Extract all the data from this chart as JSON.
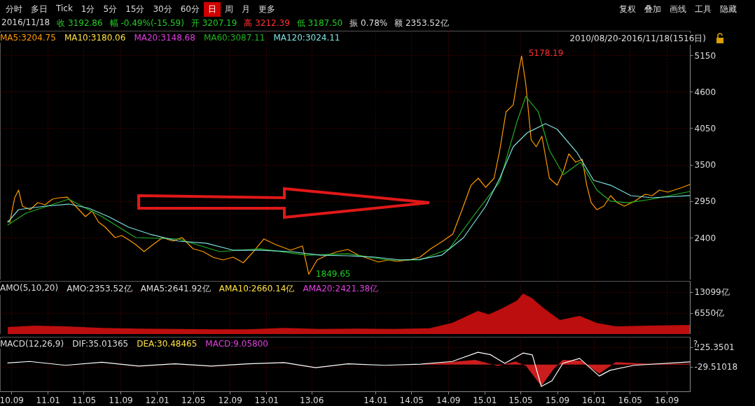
{
  "chart_data": [
    {
      "type": "line",
      "xlim": [
        "2010-07-25",
        "2016-11-18"
      ],
      "ylim": [
        1770,
        5519
      ],
      "yticks": [
        2400,
        2950,
        3500,
        4050,
        4600,
        5150
      ],
      "xticks": [
        "2010-09-01",
        "2011-01-01",
        "2011-05-01",
        "2011-09-01",
        "2012-01-01",
        "2012-05-01",
        "2012-09-01",
        "2013-01-01",
        "2013-06-01",
        "2014-01-01",
        "2014-05-01",
        "2014-09-01",
        "2015-01-01",
        "2015-05-01",
        "2015-09-01",
        "2016-01-01",
        "2016-05-01",
        "2016-09-01"
      ],
      "tick_labels": "y",
      "grid": true,
      "series": [
        {
          "color": "#ff9a00",
          "x": [
            "2010-08-20",
            "2010-08-27",
            "2010-09-12",
            "2010-09-25",
            "2010-10-08",
            "2010-11-03",
            "2010-11-28",
            "2010-12-23",
            "2011-01-16",
            "2011-02-08",
            "2011-03-07",
            "2011-04-04",
            "2011-05-07",
            "2011-05-29",
            "2011-06-20",
            "2011-07-12",
            "2011-08-14",
            "2011-09-05",
            "2011-09-28",
            "2011-10-22",
            "2011-11-19",
            "2011-12-19",
            "2012-01-20",
            "2012-02-23",
            "2012-03-25",
            "2012-05-01",
            "2012-06-04",
            "2012-07-06",
            "2012-08-09",
            "2012-09-12",
            "2012-10-16",
            "2012-11-15",
            "2012-12-24",
            "2013-02-01",
            "2013-03-23",
            "2013-05-02",
            "2013-05-23",
            "2013-06-20",
            "2013-07-24",
            "2013-08-28",
            "2013-10-01",
            "2013-11-05",
            "2013-12-09",
            "2014-01-11",
            "2014-02-12",
            "2014-03-13",
            "2014-04-24",
            "2014-05-30",
            "2014-07-05",
            "2014-08-11",
            "2014-09-17",
            "2014-10-18",
            "2014-11-17",
            "2014-12-11",
            "2015-01-05",
            "2015-02-02",
            "2015-02-21",
            "2015-03-14",
            "2015-04-07",
            "2015-04-26",
            "2015-05-05",
            "2015-05-19",
            "2015-06-06",
            "2015-06-23",
            "2015-07-12",
            "2015-08-06",
            "2015-09-01",
            "2015-09-22",
            "2015-10-10",
            "2015-11-02",
            "2015-11-24",
            "2015-12-09",
            "2015-12-24",
            "2016-01-12",
            "2016-02-04",
            "2016-02-27",
            "2016-03-20",
            "2016-04-13",
            "2016-05-17",
            "2016-06-21",
            "2016-07-15",
            "2016-08-08",
            "2016-09-05",
            "2016-10-25",
            "2016-11-18"
          ],
          "values": [
            2654,
            2633,
            3002,
            3118,
            2876,
            2823,
            2928,
            2897,
            2981,
            3002,
            3012,
            2876,
            2718,
            2802,
            2633,
            2560,
            2402,
            2433,
            2370,
            2296,
            2191,
            2296,
            2402,
            2349,
            2402,
            2233,
            2191,
            2107,
            2065,
            2107,
            2023,
            2170,
            2381,
            2296,
            2212,
            2275,
            1849.65,
            2065,
            2138,
            2191,
            2223,
            2138,
            2086,
            2033,
            2065,
            2044,
            2065,
            2107,
            2233,
            2339,
            2454,
            2823,
            3191,
            3297,
            3160,
            3297,
            3718,
            4297,
            4402,
            4929,
            5140,
            4718,
            3876,
            3771,
            3929,
            3297,
            3191,
            3402,
            3665,
            3539,
            3581,
            3191,
            2928,
            2823,
            2876,
            3034,
            2928,
            2876,
            2950,
            3055,
            3034,
            3118,
            3086,
            3160,
            3202
          ]
        },
        {
          "color": "#22b022",
          "x": [
            "2010-08-20",
            "2010-10-20",
            "2011-03-12",
            "2011-07-01",
            "2011-10-22",
            "2012-03-13",
            "2012-07-28",
            "2012-12-12",
            "2013-05-17",
            "2013-10-01",
            "2014-02-12",
            "2014-05-30",
            "2014-09-05",
            "2014-12-11",
            "2015-02-21",
            "2015-04-19",
            "2015-05-19",
            "2015-06-30",
            "2015-08-06",
            "2015-09-22",
            "2015-11-18",
            "2016-01-12",
            "2016-02-27",
            "2016-04-25",
            "2016-07-15",
            "2016-11-18"
          ],
          "values": [
            2591,
            2770,
            2981,
            2718,
            2402,
            2381,
            2191,
            2233,
            2138,
            2159,
            2065,
            2065,
            2233,
            2823,
            3244,
            4139,
            4529,
            4297,
            3718,
            3349,
            3539,
            3118,
            2950,
            2928,
            2981,
            3097
          ]
        },
        {
          "color": "#7fe0e0",
          "x": [
            "2010-08-20",
            "2010-09-25",
            "2010-12-23",
            "2011-03-12",
            "2011-05-18",
            "2011-07-23",
            "2011-09-28",
            "2011-12-08",
            "2012-03-13",
            "2012-06-15",
            "2012-09-12",
            "2012-12-12",
            "2013-03-23",
            "2013-07-01",
            "2013-10-01",
            "2014-01-01",
            "2014-03-24",
            "2014-05-30",
            "2014-08-11",
            "2014-10-23",
            "2015-01-05",
            "2015-02-21",
            "2015-04-07",
            "2015-05-24",
            "2015-07-24",
            "2015-09-01",
            "2015-11-06",
            "2016-01-01",
            "2016-02-27",
            "2016-05-05",
            "2016-07-15",
            "2016-11-18"
          ],
          "values": [
            2633,
            2823,
            2876,
            2907,
            2844,
            2718,
            2560,
            2454,
            2349,
            2317,
            2212,
            2212,
            2191,
            2138,
            2128,
            2107,
            2065,
            2075,
            2138,
            2402,
            2876,
            3297,
            3771,
            3981,
            4118,
            4034,
            3686,
            3265,
            3191,
            3034,
            3002,
            3034
          ]
        }
      ],
      "annotations": [
        "分时",
        "多日",
        "Tick",
        "1分",
        "5分",
        "15分",
        "30分",
        "60分",
        "日",
        "周",
        "月",
        "更多",
        "复权",
        "叠加",
        "画线",
        "工具",
        "隐藏",
        "2016/11/18",
        "收 3192.86",
        "幅 -0.49%(-15.59)",
        "开 3207.19",
        "高 3212.39",
        "低 3187.50",
        "振 0.78%",
        "额 2353.52亿",
        "MA5:3204.75",
        "MA10:3180.06",
        "MA20:3148.68",
        "MA60:3087.11",
        "MA120:3024.11",
        "2010/08/20-2016/11/18(1516日)",
        {
          "text": "5178.19",
          "x": "2015-05-05",
          "y": 5178.19
        },
        {
          "text": "1849.65",
          "x": "2013-05-23",
          "y": 1849.65
        }
      ]
    },
    {
      "type": "area",
      "xlim": [
        "2010-07-25",
        "2016-11-18"
      ],
      "ylim": [
        0,
        16590
      ],
      "yticks": [
        {
          "value": 6550,
          "label": "6550亿"
        },
        {
          "value": 13099,
          "label": "13099亿"
        }
      ],
      "xticks": [
        "2010-09-01",
        "2011-01-01",
        "2011-05-01",
        "2011-09-01",
        "2012-01-01",
        "2012-05-01",
        "2012-09-01",
        "2013-01-01",
        "2013-06-01",
        "2014-01-01",
        "2014-05-01",
        "2014-09-01",
        "2015-01-01",
        "2015-05-01",
        "2015-09-01",
        "2016-01-01",
        "2016-05-01",
        "2016-09-01"
      ],
      "tick_labels": "y",
      "grid": true,
      "series": [
        {
          "color": "#d01010",
          "x": [
            "2010-08-20",
            "2010-11-15",
            "2011-03-01",
            "2011-07-01",
            "2011-11-01",
            "2012-03-01",
            "2012-07-01",
            "2012-11-01",
            "2013-03-01",
            "2013-07-01",
            "2013-11-01",
            "2014-03-01",
            "2014-07-01",
            "2014-09-15",
            "2014-12-10",
            "2015-01-15",
            "2015-03-01",
            "2015-04-20",
            "2015-05-10",
            "2015-06-10",
            "2015-07-15",
            "2015-09-10",
            "2015-11-15",
            "2016-01-10",
            "2016-03-15",
            "2016-07-01",
            "2016-11-18"
          ],
          "values": [
            2200,
            2600,
            2400,
            1900,
            1700,
            1600,
            1500,
            1500,
            1900,
            1600,
            1700,
            1600,
            1800,
            3500,
            7200,
            6100,
            8000,
            10480,
            12660,
            11130,
            8300,
            4370,
            5680,
            3500,
            2400,
            2600,
            2840
          ]
        }
      ],
      "annotations": [
        "AMO(5,10,20)",
        "AMO:2353.52亿",
        "AMA5:2641.92亿",
        "AMA10:2660.14亿",
        "AMA20:2421.38亿"
      ]
    },
    {
      "type": "line",
      "xlim": [
        "2010-07-25",
        "2016-11-18"
      ],
      "ylim": [
        -349,
        361
      ],
      "yticks": [
        -29.51018,
        225.3501
      ],
      "xticks": [
        {
          "value": "2010-09-01",
          "label": "10.09"
        },
        {
          "value": "2011-01-01",
          "label": "11.01"
        },
        {
          "value": "2011-05-01",
          "label": "11.05"
        },
        {
          "value": "2011-09-01",
          "label": "11.09"
        },
        {
          "value": "2012-01-01",
          "label": "12.01"
        },
        {
          "value": "2012-05-01",
          "label": "12.05"
        },
        {
          "value": "2012-09-01",
          "label": "12.09"
        },
        {
          "value": "2013-01-01",
          "label": "13.01"
        },
        {
          "value": "2013-06-01",
          "label": "13.06"
        },
        {
          "value": "2014-01-01",
          "label": "14.01"
        },
        {
          "value": "2014-05-01",
          "label": "14.05"
        },
        {
          "value": "2014-09-01",
          "label": "14.09"
        },
        {
          "value": "2015-01-01",
          "label": "15.01"
        },
        {
          "value": "2015-05-01",
          "label": "15.05"
        },
        {
          "value": "2015-09-01",
          "label": "15.09"
        },
        {
          "value": "2016-01-01",
          "label": "16.01"
        },
        {
          "value": "2016-05-01",
          "label": "16.05"
        },
        {
          "value": "2016-09-01",
          "label": "16.09"
        }
      ],
      "grid": true,
      "series": [
        {
          "type": "area",
          "color": "#e02020",
          "x": [
            "2010-08-20",
            "2011-06-01",
            "2012-06-01",
            "2013-06-01",
            "2014-06-01",
            "2014-12-01",
            "2015-02-15",
            "2015-04-15",
            "2015-05-20",
            "2015-07-10",
            "2015-08-20",
            "2015-09-20",
            "2015-11-20",
            "2016-01-20",
            "2016-03-15",
            "2016-07-01",
            "2016-11-18"
          ],
          "values": [
            0,
            0,
            0,
            0,
            0,
            60,
            -20,
            40,
            -20,
            -280,
            -60,
            60,
            50,
            -120,
            30,
            10,
            10
          ]
        },
        {
          "color": "#ffffff",
          "x": [
            "2010-08-20",
            "2010-11-01",
            "2011-03-01",
            "2011-07-01",
            "2011-11-01",
            "2012-03-01",
            "2012-07-01",
            "2012-11-01",
            "2013-03-01",
            "2013-06-15",
            "2013-10-01",
            "2014-02-01",
            "2014-06-01",
            "2014-09-15",
            "2014-12-10",
            "2015-01-20",
            "2015-03-10",
            "2015-05-10",
            "2015-06-10",
            "2015-07-10",
            "2015-08-15",
            "2015-09-20",
            "2015-11-15",
            "2016-01-20",
            "2016-02-25",
            "2016-05-15",
            "2016-11-18"
          ],
          "values": [
            20,
            40,
            -10,
            30,
            -20,
            10,
            -20,
            10,
            25,
            -40,
            10,
            -10,
            5,
            40,
            160,
            130,
            15,
            150,
            125,
            -285,
            -210,
            15,
            80,
            -150,
            -75,
            -10,
            35
          ]
        }
      ],
      "annotations": [
        "MACD(12,26,9)",
        "DIF:35.01365",
        "DEA:30.48465",
        "MACD:9.05800",
        "?"
      ]
    }
  ]
}
